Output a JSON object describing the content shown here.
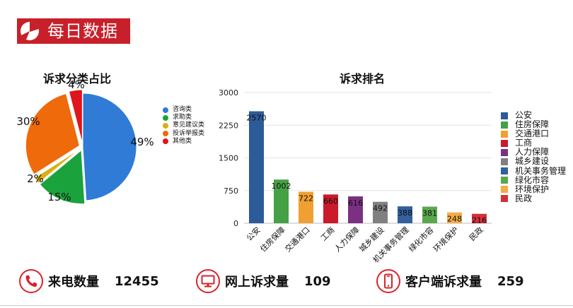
{
  "header": {
    "title": "每日数据",
    "logo_icon": "pie-chart-icon",
    "bg_color": "#c8202a"
  },
  "chart_data": [
    {
      "type": "pie",
      "title": "诉求分类占比",
      "categories": [
        "咨询类",
        "求助类",
        "意见建议类",
        "投诉举报类",
        "其他类"
      ],
      "values": [
        49,
        15,
        2,
        30,
        4
      ],
      "labels": [
        "49%",
        "15%",
        "2%",
        "30%",
        "4%"
      ],
      "colors": [
        "#2f7bd6",
        "#1aa33c",
        "#d9b012",
        "#ee6a0a",
        "#e0141c"
      ],
      "legend_position": "right"
    },
    {
      "type": "bar",
      "title": "诉求排名",
      "categories": [
        "公安",
        "住房保障",
        "交通港口",
        "工商",
        "人力保障",
        "城乡建设",
        "机关事务管理",
        "绿化市容",
        "环境保护",
        "民政"
      ],
      "values": [
        2570,
        1002,
        722,
        660,
        616,
        492,
        388,
        381,
        248,
        216
      ],
      "colors": [
        "#2d5a98",
        "#46a046",
        "#f0a030",
        "#cc1a2a",
        "#7b3082",
        "#808080",
        "#33609e",
        "#5aa84e",
        "#f4ac46",
        "#d4303a"
      ],
      "ylim": [
        0,
        3000
      ],
      "yticks": [
        "0",
        "750",
        "1500",
        "2250",
        "3000"
      ],
      "grid": true,
      "legend_position": "right"
    }
  ],
  "stats": [
    {
      "icon": "phone-icon",
      "label": "来电数量",
      "value": "12455"
    },
    {
      "icon": "monitor-icon",
      "label": "网上诉求量",
      "value": "109"
    },
    {
      "icon": "mobile-phone-icon",
      "label": "客户端诉求量",
      "value": "259"
    }
  ],
  "accent_color": "#d9232a"
}
